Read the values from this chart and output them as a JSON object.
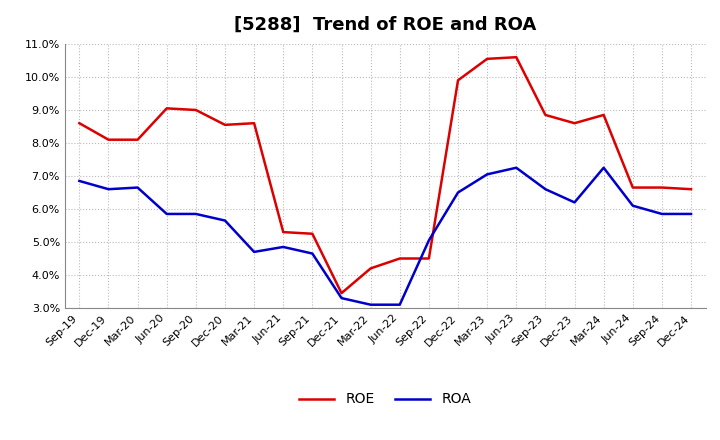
{
  "title": "[5288]  Trend of ROE and ROA",
  "x_labels": [
    "Sep-19",
    "Dec-19",
    "Mar-20",
    "Jun-20",
    "Sep-20",
    "Dec-20",
    "Mar-21",
    "Jun-21",
    "Sep-21",
    "Dec-21",
    "Mar-22",
    "Jun-22",
    "Sep-22",
    "Dec-22",
    "Mar-23",
    "Jun-23",
    "Sep-23",
    "Dec-23",
    "Mar-24",
    "Jun-24",
    "Sep-24",
    "Dec-24"
  ],
  "roe": [
    8.6,
    8.1,
    8.1,
    9.05,
    9.0,
    8.55,
    8.6,
    5.3,
    5.25,
    3.45,
    4.2,
    4.5,
    4.5,
    9.9,
    10.55,
    10.6,
    8.85,
    8.6,
    8.85,
    6.65,
    6.65,
    6.6
  ],
  "roa": [
    6.85,
    6.6,
    6.65,
    5.85,
    5.85,
    5.65,
    4.7,
    4.85,
    4.65,
    3.3,
    3.1,
    3.1,
    5.05,
    6.5,
    7.05,
    7.25,
    6.6,
    6.2,
    7.25,
    6.1,
    5.85,
    5.85
  ],
  "roe_color": "#dd0000",
  "roa_color": "#0000cc",
  "ylim_min": 3.0,
  "ylim_max": 11.0,
  "yticks": [
    3.0,
    4.0,
    5.0,
    6.0,
    7.0,
    8.0,
    9.0,
    10.0,
    11.0
  ],
  "background_color": "#ffffff",
  "grid_color": "#bbbbbb",
  "title_fontsize": 13,
  "axis_fontsize": 8,
  "legend_fontsize": 10,
  "line_width": 1.8
}
